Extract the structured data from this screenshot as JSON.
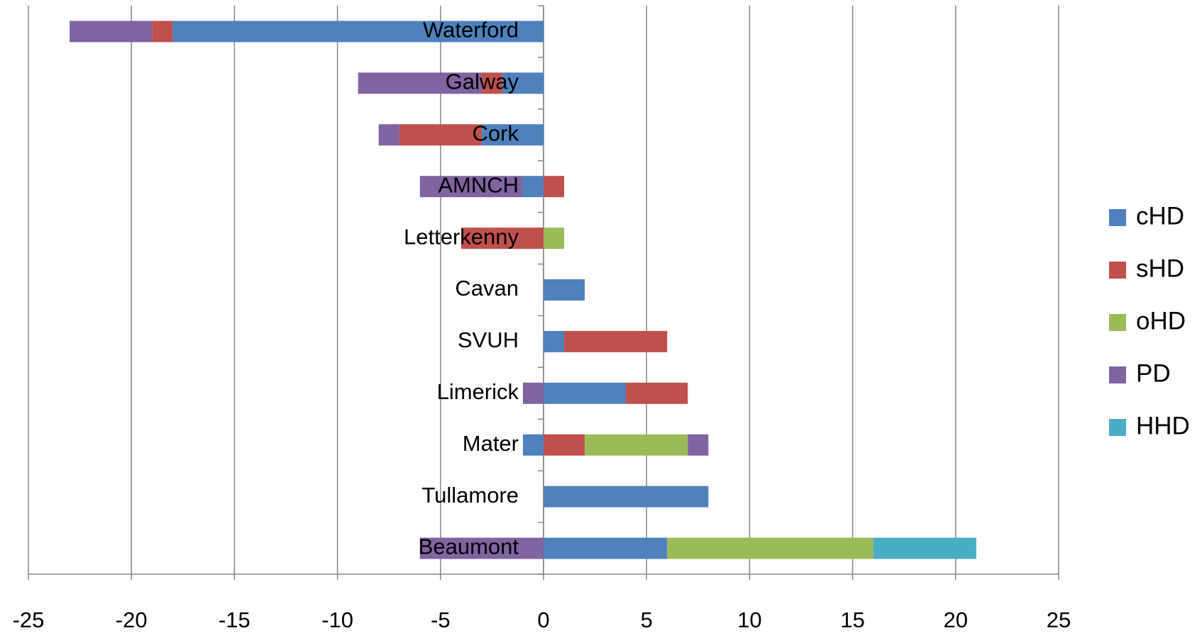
{
  "chart_data": {
    "type": "diverging-stacked-barh",
    "categories": [
      "Waterford",
      "Galway",
      "Cork",
      "AMNCH",
      "Letterkenny",
      "Cavan",
      "SVUH",
      "Limerick",
      "Mater",
      "Tullamore",
      "Beaumont"
    ],
    "series": [
      {
        "name": "cHD",
        "color": "#4f81bd",
        "values": [
          -18,
          -2,
          -3,
          -1,
          0,
          2,
          1,
          4,
          -1,
          8,
          6
        ]
      },
      {
        "name": "sHD",
        "color": "#c0504d",
        "values": [
          -1,
          -1,
          -4,
          1,
          -4,
          0,
          5,
          3,
          2,
          0,
          0
        ]
      },
      {
        "name": "oHD",
        "color": "#9bbb59",
        "values": [
          0,
          0,
          0,
          0,
          1,
          0,
          0,
          0,
          5,
          0,
          10
        ]
      },
      {
        "name": "PD",
        "color": "#8064a2",
        "values": [
          -4,
          -6,
          -1,
          -5,
          0,
          0,
          0,
          -1,
          1,
          0,
          -6
        ]
      },
      {
        "name": "HHD",
        "color": "#4bacc6",
        "values": [
          0,
          0,
          0,
          0,
          0,
          0,
          0,
          0,
          0,
          0,
          5
        ]
      }
    ],
    "xlim": [
      -25,
      25
    ],
    "xticks": [
      -25,
      -20,
      -15,
      -10,
      -5,
      0,
      5,
      10,
      15,
      20,
      25
    ],
    "grid": true,
    "legend": "right"
  }
}
